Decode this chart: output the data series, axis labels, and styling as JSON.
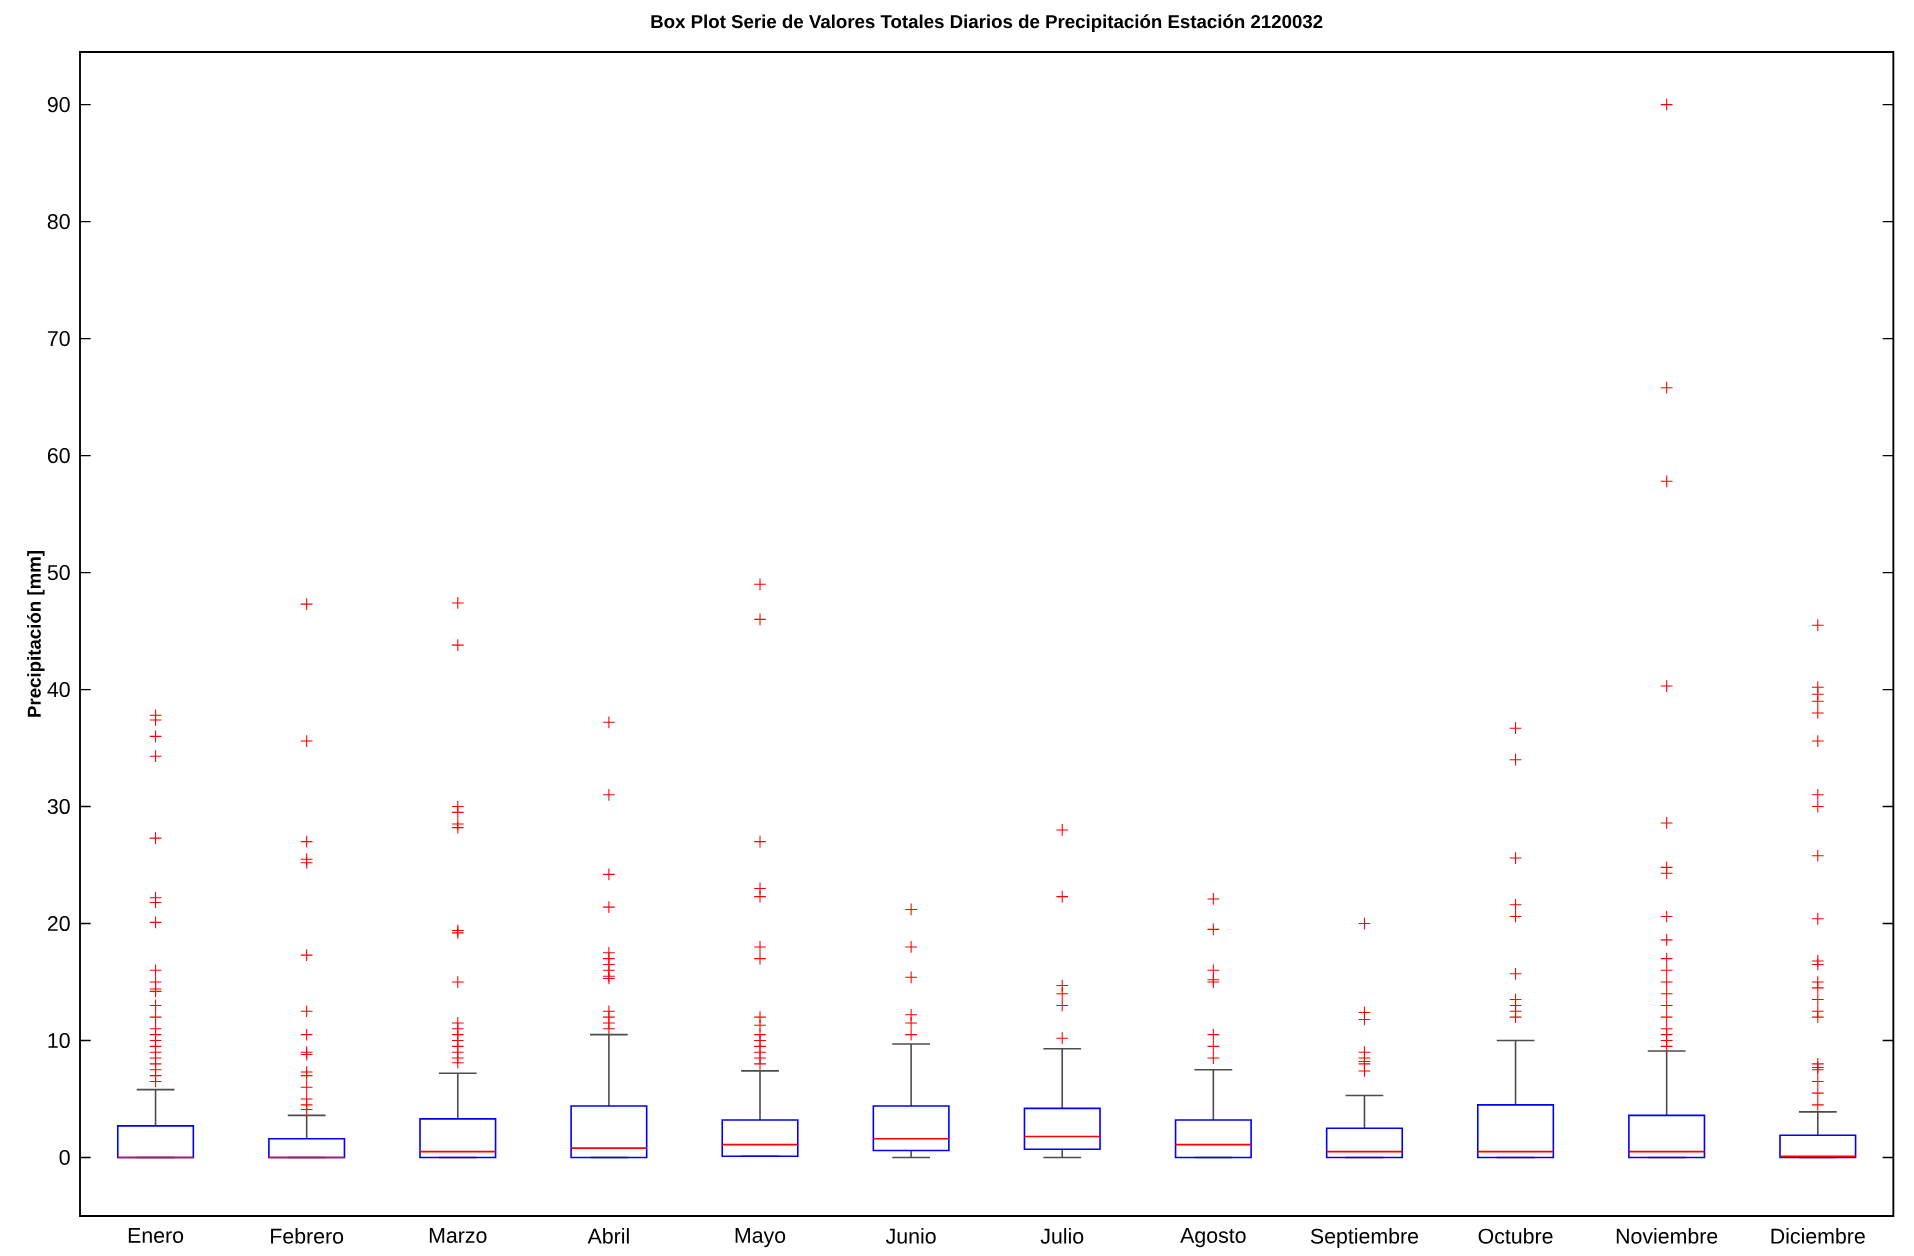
{
  "chart_data": {
    "type": "box",
    "title": "Box Plot Serie de Valores Totales Diarios de Precipitación Estación 2120032",
    "ylabel": "Precipitación [mm]",
    "categories": [
      "Enero",
      "Febrero",
      "Marzo",
      "Abril",
      "Mayo",
      "Junio",
      "Julio",
      "Agosto",
      "Septiembre",
      "Octubre",
      "Noviembre",
      "Diciembre"
    ],
    "ylim": [
      -5,
      94.5
    ],
    "yticks": [
      0,
      10,
      20,
      30,
      40,
      50,
      60,
      70,
      80,
      90
    ],
    "grid": false,
    "marker": "cross",
    "series": [
      {
        "color": "#0000ff",
        "boxes": [
          {
            "low": 0,
            "q1": 0,
            "median": 0,
            "q3": 2.7,
            "high": 5.8,
            "outliers": [
              37.8,
              37.4,
              36,
              34.3,
              27.3,
              22.2,
              21.8,
              20.1,
              16,
              15,
              14.4,
              14.2,
              13,
              12,
              11,
              10.5,
              10,
              9.5,
              9,
              8.5,
              8,
              7.5,
              7,
              6.5
            ]
          },
          {
            "low": 0,
            "q1": 0,
            "median": 0,
            "q3": 1.6,
            "high": 3.6,
            "outliers": [
              47.3,
              35.6,
              27,
              25.5,
              25.2,
              17.3,
              12.5,
              10.5,
              9,
              8.8,
              7.3,
              7,
              6,
              5,
              4.5,
              4.1
            ]
          },
          {
            "low": 0,
            "q1": 0,
            "median": 0.5,
            "q3": 3.3,
            "high": 7.2,
            "outliers": [
              47.4,
              43.8,
              30,
              29.5,
              28.5,
              28.2,
              19.4,
              19.2,
              15,
              11.5,
              11,
              10.5,
              10,
              9.5,
              9,
              8.5,
              8.1
            ]
          },
          {
            "low": 0,
            "q1": 0,
            "median": 0.8,
            "q3": 4.4,
            "high": 10.5,
            "outliers": [
              37.2,
              31,
              24.2,
              21.4,
              17.5,
              17,
              16.5,
              16,
              15.5,
              15.3,
              12.5,
              12,
              11.5,
              11
            ]
          },
          {
            "low": 0.1,
            "q1": 0.1,
            "median": 1.1,
            "q3": 3.2,
            "high": 7.4,
            "outliers": [
              49,
              46,
              27,
              23,
              22.3,
              18,
              17,
              12,
              11.3,
              10.5,
              10,
              9.5,
              9,
              8.5,
              8
            ]
          },
          {
            "low": 0,
            "q1": 0.6,
            "median": 1.6,
            "q3": 4.4,
            "high": 9.7,
            "outliers": [
              21.2,
              18,
              15.4,
              12.2,
              11.5,
              10.5
            ]
          },
          {
            "low": 0,
            "q1": 0.7,
            "median": 1.8,
            "q3": 4.2,
            "high": 9.3,
            "outliers": [
              28,
              22.3,
              14.7,
              14,
              13,
              10.2
            ]
          },
          {
            "low": 0,
            "q1": 0,
            "median": 1.1,
            "q3": 3.2,
            "high": 7.5,
            "outliers": [
              22.1,
              19.5,
              16,
              15.2,
              15,
              10.5,
              9.5,
              8.5
            ]
          },
          {
            "low": 0,
            "q1": 0,
            "median": 0.5,
            "q3": 2.5,
            "high": 5.3,
            "outliers": [
              20,
              12.4,
              11.8,
              9,
              8.5,
              8.2,
              8,
              7.4
            ]
          },
          {
            "low": 0,
            "q1": 0,
            "median": 0.5,
            "q3": 4.5,
            "high": 10,
            "outliers": [
              36.7,
              34,
              25.6,
              21.6,
              20.6,
              15.7,
              13.5,
              13,
              12.5,
              12
            ]
          },
          {
            "low": 0,
            "q1": 0,
            "median": 0.5,
            "q3": 3.6,
            "high": 9.1,
            "outliers": [
              90,
              65.8,
              57.8,
              40.3,
              28.6,
              24.8,
              24.3,
              20.6,
              18.6,
              17,
              16,
              15,
              14,
              13,
              12,
              11,
              10.5,
              10,
              9.5
            ]
          },
          {
            "low": 0,
            "q1": 0,
            "median": 0.1,
            "q3": 1.9,
            "high": 3.9,
            "outliers": [
              45.5,
              40.2,
              39.6,
              39,
              38,
              35.6,
              31,
              30,
              25.8,
              20.4,
              16.8,
              16.5,
              15,
              14.5,
              13.5,
              12.5,
              12,
              8,
              7.7,
              7.5,
              6.5,
              5.5,
              4.5
            ]
          }
        ]
      }
    ]
  }
}
